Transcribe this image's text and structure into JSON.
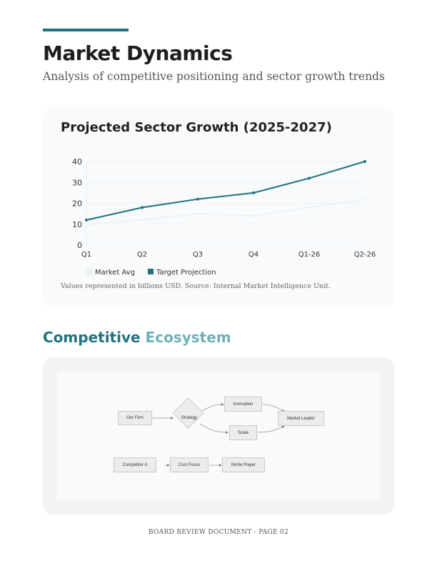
{
  "header": {
    "title": "Market Dynamics",
    "subtitle": "Analysis of competitive positioning and sector growth trends",
    "accent": "#1f7380"
  },
  "chart_card": {
    "title": "Projected Sector Growth (2025-2027)",
    "note": "Values represented in billions USD. Source: Internal Market Intelligence Unit."
  },
  "chart_data": {
    "type": "line",
    "categories": [
      "Q1",
      "Q2",
      "Q3",
      "Q4",
      "Q1-26",
      "Q2-26"
    ],
    "ylim": [
      0,
      40
    ],
    "yticks": [
      "0",
      "10",
      "20",
      "30",
      "40"
    ],
    "grid": true,
    "legend_placement": "bottom-left",
    "series": [
      {
        "name": "Market Avg",
        "values": [
          10,
          12,
          15,
          14,
          18,
          22
        ],
        "color": "#e6f3f3"
      },
      {
        "name": "Target Projection",
        "values": [
          12,
          18,
          22,
          25,
          32,
          40
        ],
        "color": "#1f7380"
      }
    ]
  },
  "section": {
    "title_a": "Competitive",
    "title_b": "Ecosystem"
  },
  "diagram": {
    "nodes": {
      "our_firm": "Our Firm",
      "strategy": "Strategy",
      "innovation": "Innovation",
      "scale": "Scale",
      "market_leader": "Market Leader",
      "competitor_a": "Competitor A",
      "cost_focus": "Cost Focus",
      "niche_player": "Niche Player"
    }
  },
  "footer": "BOARD REVIEW DOCUMENT - PAGE 02"
}
